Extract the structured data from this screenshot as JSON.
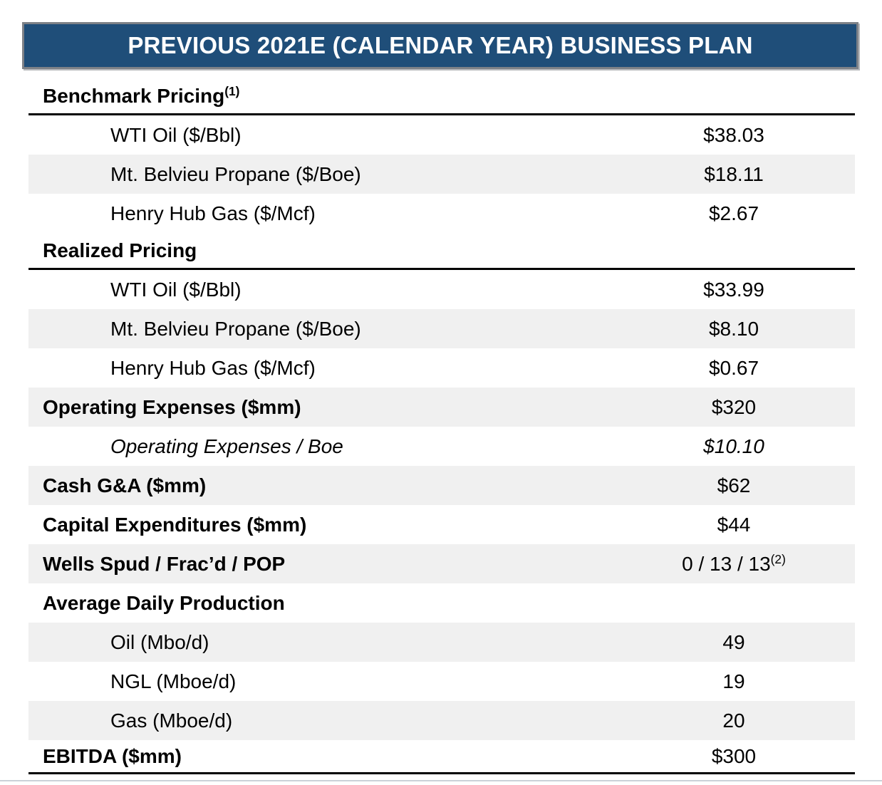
{
  "header": {
    "title": "PREVIOUS 2021E (CALENDAR YEAR) BUSINESS PLAN"
  },
  "colors": {
    "header_bg": "#1F4E79",
    "header_border": "#7D8187",
    "header_text": "#FFFFFF",
    "row_shade": "#F0F0F0",
    "rule": "#000000",
    "bottom_rule": "#CBD1D8",
    "text": "#000000"
  },
  "table": {
    "rows": [
      {
        "label": "Benchmark Pricing",
        "label_sup": "(1)",
        "value": "",
        "type": "section",
        "underline": true,
        "shaded": false
      },
      {
        "label": "WTI Oil ($/Bbl)",
        "value": "$38.03",
        "type": "sub",
        "underline": false,
        "shaded": false
      },
      {
        "label": "Mt. Belvieu Propane ($/Boe)",
        "value": "$18.11",
        "type": "sub",
        "underline": false,
        "shaded": true
      },
      {
        "label": "Henry Hub Gas ($/Mcf)",
        "value": "$2.67",
        "type": "sub",
        "underline": false,
        "shaded": false
      },
      {
        "label": "Realized Pricing",
        "value": "",
        "type": "section",
        "underline": true,
        "shaded": false
      },
      {
        "label": "WTI Oil ($/Bbl)",
        "value": "$33.99",
        "type": "sub",
        "underline": false,
        "shaded": false
      },
      {
        "label": "Mt. Belvieu Propane ($/Boe)",
        "value": "$8.10",
        "type": "sub",
        "underline": false,
        "shaded": true
      },
      {
        "label": "Henry Hub Gas ($/Mcf)",
        "value": "$0.67",
        "type": "sub",
        "underline": false,
        "shaded": false
      },
      {
        "label": "Operating Expenses ($mm)",
        "value": "$320",
        "type": "bold",
        "underline": false,
        "shaded": true
      },
      {
        "label": "Operating Expenses / Boe",
        "value": "$10.10",
        "type": "italic-sub",
        "underline": false,
        "shaded": false
      },
      {
        "label": "Cash G&A ($mm)",
        "value": "$62",
        "type": "bold",
        "underline": false,
        "shaded": true
      },
      {
        "label": "Capital Expenditures ($mm)",
        "value": "$44",
        "type": "bold",
        "underline": false,
        "shaded": false
      },
      {
        "label": "Wells Spud / Frac’d / POP",
        "value": "0 / 13 / 13",
        "value_sup": "(2)",
        "type": "bold",
        "underline": false,
        "shaded": true
      },
      {
        "label": "Average Daily Production",
        "value": "",
        "type": "section",
        "underline": false,
        "shaded": false
      },
      {
        "label": "Oil (Mbo/d)",
        "value": "49",
        "type": "sub",
        "underline": false,
        "shaded": true
      },
      {
        "label": "NGL (Mboe/d)",
        "value": "19",
        "type": "sub",
        "underline": false,
        "shaded": false
      },
      {
        "label": "Gas (Mboe/d)",
        "value": "20",
        "type": "sub",
        "underline": false,
        "shaded": true
      },
      {
        "label": "EBITDA ($mm)",
        "value": "$300",
        "type": "bold",
        "underline": true,
        "shaded": false
      }
    ]
  }
}
